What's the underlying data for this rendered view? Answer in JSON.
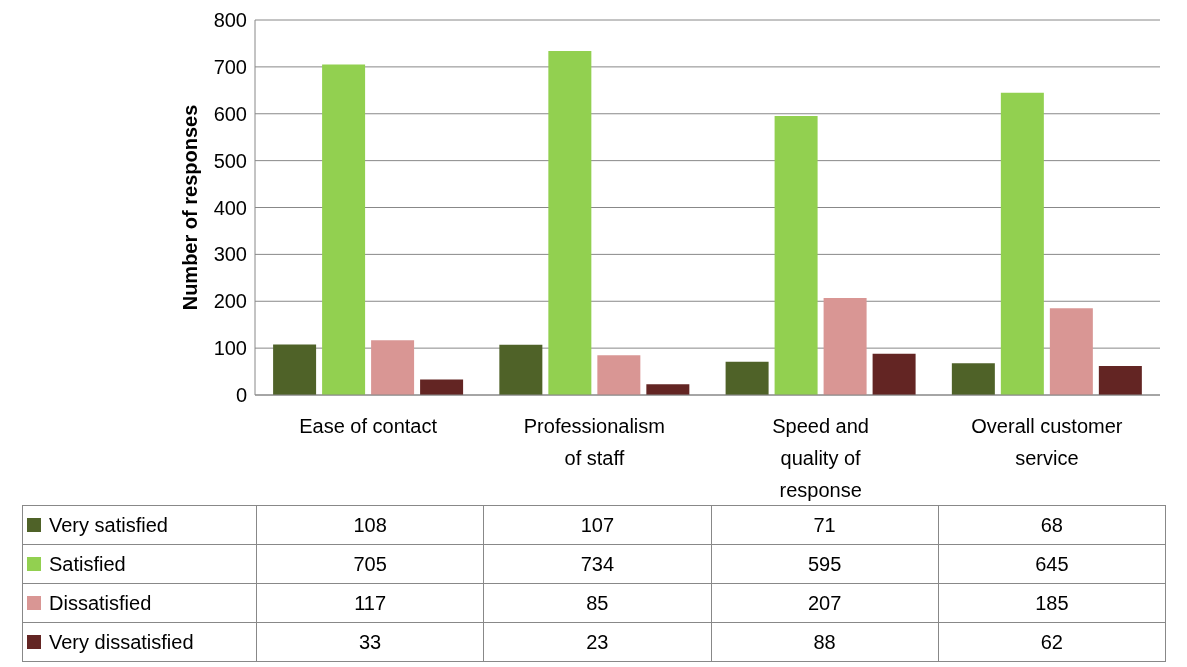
{
  "chart_data": {
    "type": "bar",
    "ylabel": "Number of responses",
    "categories": [
      "Ease of contact",
      "Professionalism of staff",
      "Speed and quality of response",
      "Overall customer service"
    ],
    "series": [
      {
        "name": "Very satisfied",
        "color": "#4f6228",
        "values": [
          108,
          107,
          71,
          68
        ]
      },
      {
        "name": "Satisfied",
        "color": "#92d050",
        "values": [
          705,
          734,
          595,
          645
        ]
      },
      {
        "name": "Dissatisfied",
        "color": "#d99694",
        "values": [
          117,
          85,
          207,
          185
        ]
      },
      {
        "name": "Very dissatisfied",
        "color": "#632523",
        "values": [
          33,
          23,
          88,
          62
        ]
      }
    ],
    "ylim": [
      0,
      800
    ],
    "yticks": [
      0,
      100,
      200,
      300,
      400,
      500,
      600,
      700,
      800
    ],
    "grid": "y",
    "legend": "bottom left",
    "data_labels": true
  }
}
